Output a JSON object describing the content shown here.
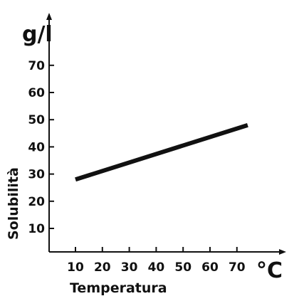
{
  "chart_data": {
    "type": "line",
    "x_unit": "°C",
    "y_unit": "g/l",
    "xlabel": "Temperatura",
    "ylabel": "Solubilità",
    "x_ticks": [
      10,
      20,
      30,
      40,
      50,
      60,
      70
    ],
    "y_ticks": [
      10,
      20,
      30,
      40,
      50,
      60,
      70
    ],
    "series": [
      {
        "x": [
          10,
          74
        ],
        "y": [
          28,
          48
        ],
        "color": "#111111"
      }
    ],
    "grid": false,
    "legend": "none"
  }
}
